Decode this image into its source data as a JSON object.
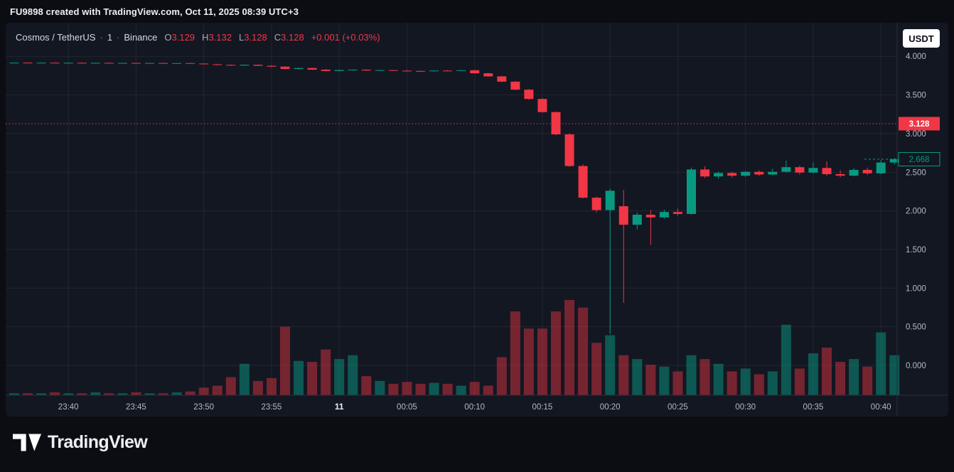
{
  "header": {
    "attribution": "FU9898 created with TradingView.com, Oct 11, 2025 08:39 UTC+3"
  },
  "toolbar": {
    "currency_label": "USDT"
  },
  "legend": {
    "symbol": "Cosmos / TetherUS",
    "separator": "·",
    "interval": "1",
    "exchange": "Binance",
    "o_label": "O",
    "o_value": "3.129",
    "h_label": "H",
    "h_value": "3.132",
    "l_label": "L",
    "l_value": "3.128",
    "c_label": "C",
    "c_value": "3.128",
    "change": "+0.001 (+0.03%)"
  },
  "price_axis": {
    "ticks": [
      "4.000",
      "3.500",
      "3.000",
      "2.500",
      "2.000",
      "1.500",
      "1.000",
      "0.500",
      "0.000"
    ],
    "prev_close_badge": "3.128",
    "last_price_badge": "2.668"
  },
  "footer": {
    "brand": "TradingView"
  },
  "colors": {
    "up": "#089981",
    "down": "#f23645",
    "vol_up": "rgba(8,153,129,0.50)",
    "vol_down": "rgba(242,54,69,0.45)",
    "panel_bg": "#131722",
    "page_bg": "#0b0d13",
    "axis_text": "#b4b9c4"
  },
  "chart_data": {
    "type": "candlestick",
    "title": "Cosmos / TetherUS",
    "exchange": "Binance",
    "interval": "1 minute",
    "ylim": [
      0,
      4.43
    ],
    "grid": true,
    "price_axis_ticks": [
      4.0,
      3.5,
      3.0,
      2.5,
      2.0,
      1.5,
      1.0,
      0.5,
      0.0
    ],
    "prev_close_line": {
      "value": 3.128,
      "style": "dotted",
      "color": "#f23645"
    },
    "last_price": {
      "value": 2.668,
      "color": "#089981"
    },
    "time_labels": [
      {
        "index": 4,
        "text": "23:40"
      },
      {
        "index": 9,
        "text": "23:45"
      },
      {
        "index": 14,
        "text": "23:50"
      },
      {
        "index": 19,
        "text": "23:55"
      },
      {
        "index": 24,
        "text": "11",
        "emphasis": true
      },
      {
        "index": 29,
        "text": "00:05"
      },
      {
        "index": 34,
        "text": "00:10"
      },
      {
        "index": 39,
        "text": "00:15"
      },
      {
        "index": 44,
        "text": "00:20"
      },
      {
        "index": 49,
        "text": "00:25"
      },
      {
        "index": 54,
        "text": "00:30"
      },
      {
        "index": 59,
        "text": "00:35"
      },
      {
        "index": 64,
        "text": "00:40"
      }
    ],
    "volume_unit": "relative (0-100, no scale shown)",
    "candle_columns": [
      "time",
      "open",
      "high",
      "low",
      "close",
      "volume_rel"
    ],
    "candles": [
      [
        "23:36",
        3.916,
        3.92,
        3.912,
        3.918,
        2
      ],
      [
        "23:37",
        3.918,
        3.921,
        3.913,
        3.915,
        2
      ],
      [
        "23:38",
        3.915,
        3.919,
        3.911,
        3.917,
        2
      ],
      [
        "23:39",
        3.917,
        3.92,
        3.912,
        3.914,
        3
      ],
      [
        "23:40",
        3.914,
        3.918,
        3.91,
        3.916,
        2
      ],
      [
        "23:41",
        3.916,
        3.919,
        3.911,
        3.913,
        2
      ],
      [
        "23:42",
        3.913,
        3.917,
        3.909,
        3.915,
        3
      ],
      [
        "23:43",
        3.915,
        3.918,
        3.91,
        3.912,
        2
      ],
      [
        "23:44",
        3.912,
        3.916,
        3.908,
        3.914,
        2
      ],
      [
        "23:45",
        3.914,
        3.917,
        3.909,
        3.911,
        3
      ],
      [
        "23:46",
        3.911,
        3.915,
        3.907,
        3.913,
        2
      ],
      [
        "23:47",
        3.913,
        3.916,
        3.908,
        3.91,
        2
      ],
      [
        "23:48",
        3.91,
        3.914,
        3.906,
        3.912,
        3
      ],
      [
        "23:49",
        3.912,
        3.915,
        3.903,
        3.906,
        4
      ],
      [
        "23:50",
        3.906,
        3.91,
        3.893,
        3.897,
        8
      ],
      [
        "23:51",
        3.897,
        3.903,
        3.885,
        3.889,
        10
      ],
      [
        "23:52",
        3.889,
        3.895,
        3.876,
        3.88,
        19
      ],
      [
        "23:53",
        3.88,
        3.893,
        3.877,
        3.89,
        33
      ],
      [
        "23:54",
        3.89,
        3.894,
        3.873,
        3.877,
        15
      ],
      [
        "23:55",
        3.877,
        3.884,
        3.862,
        3.866,
        18
      ],
      [
        "23:56",
        3.866,
        3.872,
        3.828,
        3.836,
        72
      ],
      [
        "23:57",
        3.836,
        3.852,
        3.83,
        3.848,
        36
      ],
      [
        "23:58",
        3.848,
        3.854,
        3.822,
        3.827,
        35
      ],
      [
        "23:59",
        3.827,
        3.835,
        3.805,
        3.81,
        48
      ],
      [
        "00:00",
        3.81,
        3.826,
        3.804,
        3.822,
        38
      ],
      [
        "00:01",
        3.822,
        3.83,
        3.816,
        3.827,
        42
      ],
      [
        "00:02",
        3.827,
        3.832,
        3.812,
        3.816,
        20
      ],
      [
        "00:03",
        3.816,
        3.824,
        3.81,
        3.821,
        15
      ],
      [
        "00:04",
        3.821,
        3.825,
        3.811,
        3.814,
        12
      ],
      [
        "00:05",
        3.814,
        3.82,
        3.806,
        3.81,
        14
      ],
      [
        "00:06",
        3.81,
        3.816,
        3.802,
        3.806,
        12
      ],
      [
        "00:07",
        3.806,
        3.818,
        3.803,
        3.815,
        13
      ],
      [
        "00:08",
        3.815,
        3.822,
        3.808,
        3.812,
        12
      ],
      [
        "00:09",
        3.812,
        3.824,
        3.809,
        3.82,
        10
      ],
      [
        "00:10",
        3.82,
        3.823,
        3.775,
        3.78,
        14
      ],
      [
        "00:11",
        3.78,
        3.786,
        3.735,
        3.74,
        10
      ],
      [
        "00:12",
        3.74,
        3.746,
        3.665,
        3.672,
        40
      ],
      [
        "00:13",
        3.672,
        3.678,
        3.56,
        3.568,
        88
      ],
      [
        "00:14",
        3.568,
        3.575,
        3.44,
        3.448,
        70
      ],
      [
        "00:15",
        3.448,
        3.456,
        3.27,
        3.278,
        70
      ],
      [
        "00:16",
        3.278,
        3.285,
        2.98,
        2.99,
        88
      ],
      [
        "00:17",
        2.99,
        3.005,
        2.57,
        2.58,
        100
      ],
      [
        "00:18",
        2.58,
        2.6,
        2.16,
        2.17,
        92
      ],
      [
        "00:19",
        2.17,
        2.185,
        1.98,
        2.01,
        55
      ],
      [
        "00:20",
        2.01,
        2.29,
        0.41,
        2.26,
        63
      ],
      [
        "00:21",
        2.06,
        2.27,
        0.81,
        1.82,
        42
      ],
      [
        "00:22",
        1.82,
        1.98,
        1.76,
        1.95,
        38
      ],
      [
        "00:23",
        1.95,
        2.01,
        1.56,
        1.915,
        32
      ],
      [
        "00:24",
        1.915,
        2.015,
        1.895,
        1.985,
        30
      ],
      [
        "00:25",
        1.985,
        2.03,
        1.94,
        1.96,
        25
      ],
      [
        "00:26",
        1.96,
        2.56,
        1.95,
        2.535,
        42
      ],
      [
        "00:27",
        2.535,
        2.575,
        2.425,
        2.445,
        38
      ],
      [
        "00:28",
        2.445,
        2.51,
        2.415,
        2.49,
        33
      ],
      [
        "00:29",
        2.49,
        2.505,
        2.43,
        2.455,
        25
      ],
      [
        "00:30",
        2.455,
        2.515,
        2.44,
        2.505,
        28
      ],
      [
        "00:31",
        2.505,
        2.525,
        2.455,
        2.47,
        22
      ],
      [
        "00:32",
        2.47,
        2.545,
        2.46,
        2.505,
        25
      ],
      [
        "00:33",
        2.505,
        2.65,
        2.495,
        2.565,
        74
      ],
      [
        "00:34",
        2.565,
        2.585,
        2.47,
        2.495,
        28
      ],
      [
        "00:35",
        2.495,
        2.63,
        2.485,
        2.555,
        44
      ],
      [
        "00:36",
        2.555,
        2.64,
        2.455,
        2.475,
        50
      ],
      [
        "00:37",
        2.475,
        2.525,
        2.435,
        2.455,
        35
      ],
      [
        "00:38",
        2.455,
        2.555,
        2.445,
        2.53,
        38
      ],
      [
        "00:39",
        2.53,
        2.56,
        2.465,
        2.485,
        30
      ],
      [
        "00:40",
        2.485,
        2.66,
        2.475,
        2.625,
        66
      ],
      [
        "00:41",
        2.625,
        2.685,
        2.6,
        2.668,
        42
      ]
    ]
  }
}
